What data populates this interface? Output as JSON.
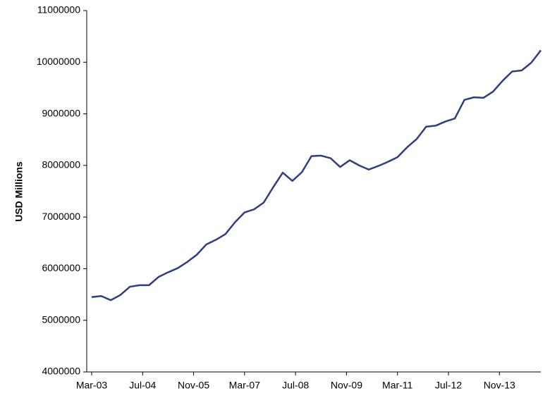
{
  "chart_data": {
    "type": "line",
    "y_label": "USD Millions",
    "x": [
      "Mar-03",
      "Jun-03",
      "Sep-03",
      "Dec-03",
      "Mar-04",
      "Jun-04",
      "Sep-04",
      "Dec-04",
      "Mar-05",
      "Jun-05",
      "Sep-05",
      "Dec-05",
      "Mar-06",
      "Jun-06",
      "Sep-06",
      "Dec-06",
      "Mar-07",
      "Jun-07",
      "Sep-07",
      "Dec-07",
      "Mar-08",
      "Jun-08",
      "Sep-08",
      "Dec-08",
      "Mar-09",
      "Jun-09",
      "Sep-09",
      "Dec-09",
      "Mar-10",
      "Jun-10",
      "Sep-10",
      "Dec-10",
      "Mar-11",
      "Jun-11",
      "Sep-11",
      "Dec-11",
      "Mar-12",
      "Jun-12",
      "Sep-12",
      "Dec-12",
      "Mar-13",
      "Jun-13",
      "Sep-13",
      "Dec-13",
      "Mar-14",
      "Jun-14",
      "Sep-14",
      "Dec-14"
    ],
    "series": [
      {
        "color": "#2e3f7c",
        "values": [
          5450000,
          5470000,
          5390000,
          5490000,
          5650000,
          5680000,
          5680000,
          5840000,
          5930000,
          6010000,
          6130000,
          6270000,
          6470000,
          6560000,
          6670000,
          6900000,
          7090000,
          7150000,
          7280000,
          7580000,
          7860000,
          7700000,
          7870000,
          8180000,
          8190000,
          8140000,
          7970000,
          8100000,
          8000000,
          7920000,
          7990000,
          8070000,
          8160000,
          8350000,
          8510000,
          8750000,
          8770000,
          8850000,
          8910000,
          9270000,
          9320000,
          9310000,
          9430000,
          9640000,
          9820000,
          9840000,
          9990000,
          10230000
        ]
      }
    ],
    "xlim": [
      "Mar-03",
      "Dec-14"
    ],
    "xticks": [
      "Mar-03",
      "Jul-04",
      "Nov-05",
      "Mar-07",
      "Jul-08",
      "Nov-09",
      "Mar-11",
      "Jul-12",
      "Nov-13"
    ],
    "ylim": [
      4000000,
      11000000
    ],
    "yticks": [
      4000000,
      5000000,
      6000000,
      7000000,
      8000000,
      9000000,
      10000000,
      11000000
    ],
    "grid": false
  }
}
